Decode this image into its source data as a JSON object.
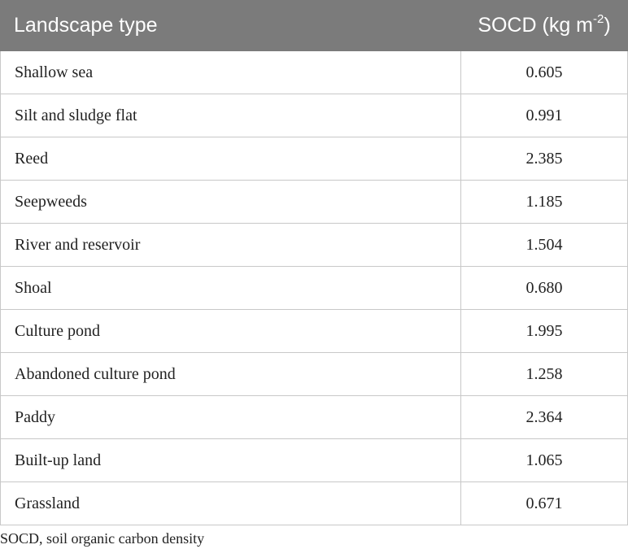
{
  "table": {
    "headers": {
      "landscape": "Landscape type",
      "socd_prefix": "SOCD (kg m",
      "socd_superscript": "-2",
      "socd_suffix": ")"
    },
    "rows": [
      {
        "type": "Shallow sea",
        "socd": "0.605"
      },
      {
        "type": "Silt and sludge flat",
        "socd": "0.991"
      },
      {
        "type": "Reed",
        "socd": "2.385"
      },
      {
        "type": "Seepweeds",
        "socd": "1.185"
      },
      {
        "type": "River and reservoir",
        "socd": "1.504"
      },
      {
        "type": "Shoal",
        "socd": "0.680"
      },
      {
        "type": "Culture pond",
        "socd": "1.995"
      },
      {
        "type": "Abandoned culture pond",
        "socd": "1.258"
      },
      {
        "type": "Paddy",
        "socd": "2.364"
      },
      {
        "type": "Built-up land",
        "socd": "1.065"
      },
      {
        "type": "Grassland",
        "socd": "0.671"
      }
    ]
  },
  "footnote": "SOCD, soil organic carbon density",
  "colors": {
    "header_bg": "#7b7b7b",
    "header_text": "#ffffff",
    "grid": "#c8c8c8"
  }
}
